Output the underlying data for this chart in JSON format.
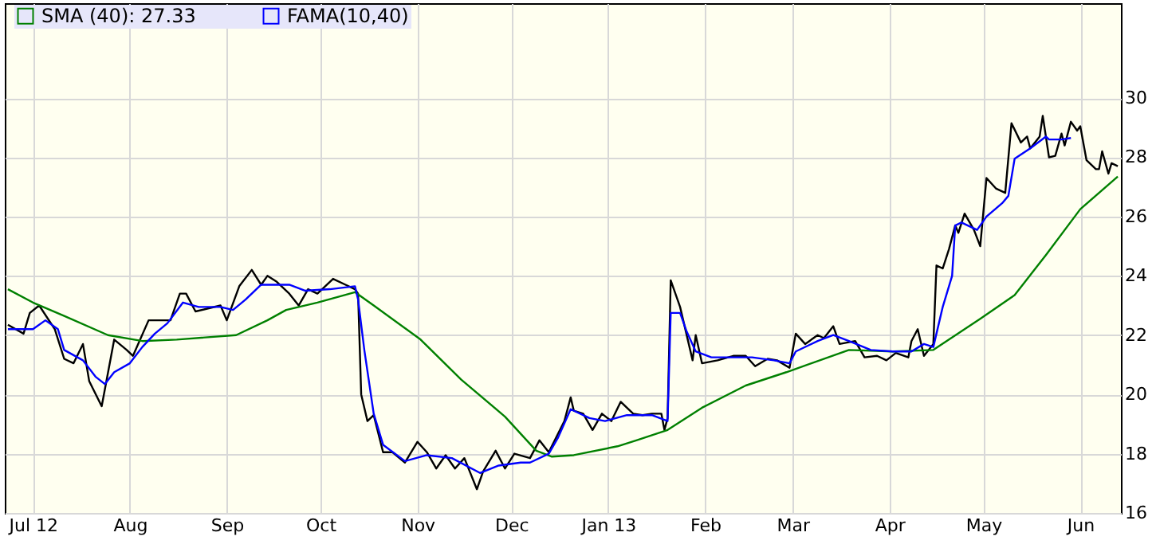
{
  "chart_data": {
    "type": "line",
    "legend": "top left",
    "grid": true,
    "line_style": "solid",
    "marker": "none",
    "xlim": [
      "2012-06-22",
      "2013-06-14"
    ],
    "ylim": [
      16,
      33.2
    ],
    "yticks": [
      16,
      18,
      20,
      22,
      24,
      26,
      28,
      30
    ],
    "xticks": [
      {
        "value": "2012-07-01",
        "label": "Jul 12"
      },
      {
        "value": "2012-08-01",
        "label": "Aug"
      },
      {
        "value": "2012-09-01",
        "label": "Sep"
      },
      {
        "value": "2012-10-01",
        "label": "Oct"
      },
      {
        "value": "2012-11-01",
        "label": "Nov"
      },
      {
        "value": "2012-12-01",
        "label": "Dec"
      },
      {
        "value": "2013-01-01",
        "label": "Jan 13"
      },
      {
        "value": "2013-02-01",
        "label": "Feb"
      },
      {
        "value": "2013-03-01",
        "label": "Mar"
      },
      {
        "value": "2013-04-01",
        "label": "Apr"
      },
      {
        "value": "2013-05-01",
        "label": "May"
      },
      {
        "value": "2013-06-01",
        "label": "Jun"
      }
    ],
    "series": [
      {
        "color": "#000000",
        "x": [
          "2012-06-23",
          "2012-06-28",
          "2012-06-30",
          "2012-07-03",
          "2012-07-08",
          "2012-07-11",
          "2012-07-14",
          "2012-07-17",
          "2012-07-19",
          "2012-07-23",
          "2012-07-27",
          "2012-07-31",
          "2012-08-02",
          "2012-08-07",
          "2012-08-11",
          "2012-08-14",
          "2012-08-17",
          "2012-08-19",
          "2012-08-22",
          "2012-08-26",
          "2012-08-30",
          "2012-09-01",
          "2012-09-05",
          "2012-09-09",
          "2012-09-12",
          "2012-09-14",
          "2012-09-17",
          "2012-09-21",
          "2012-09-24",
          "2012-09-27",
          "2012-09-30",
          "2012-10-05",
          "2012-10-09",
          "2012-10-12",
          "2012-10-13",
          "2012-10-14",
          "2012-10-16",
          "2012-10-18",
          "2012-10-21",
          "2012-10-24",
          "2012-10-28",
          "2012-11-01",
          "2012-11-04",
          "2012-11-07",
          "2012-11-10",
          "2012-11-13",
          "2012-11-16",
          "2012-11-20",
          "2012-11-22",
          "2012-11-26",
          "2012-11-29",
          "2012-12-02",
          "2012-12-07",
          "2012-12-10",
          "2012-12-13",
          "2012-12-18",
          "2012-12-20",
          "2012-12-21",
          "2012-12-24",
          "2012-12-27",
          "2012-12-30",
          "2013-01-02",
          "2013-01-05",
          "2013-01-09",
          "2013-01-12",
          "2013-01-15",
          "2013-01-18",
          "2013-01-19",
          "2013-01-20",
          "2013-01-21",
          "2013-01-24",
          "2013-01-26",
          "2013-01-28",
          "2013-01-29",
          "2013-01-31",
          "2013-02-05",
          "2013-02-10",
          "2013-02-14",
          "2013-02-17",
          "2013-02-21",
          "2013-02-24",
          "2013-02-28",
          "2013-03-02",
          "2013-03-05",
          "2013-03-09",
          "2013-03-11",
          "2013-03-14",
          "2013-03-16",
          "2013-03-21",
          "2013-03-24",
          "2013-03-28",
          "2013-03-31",
          "2013-04-03",
          "2013-04-07",
          "2013-04-08",
          "2013-04-10",
          "2013-04-12",
          "2013-04-15",
          "2013-04-16",
          "2013-04-18",
          "2013-04-20",
          "2013-04-22",
          "2013-04-23",
          "2013-04-25",
          "2013-04-28",
          "2013-04-30",
          "2013-05-02",
          "2013-05-05",
          "2013-05-08",
          "2013-05-10",
          "2013-05-13",
          "2013-05-15",
          "2013-05-16",
          "2013-05-19",
          "2013-05-20",
          "2013-05-22",
          "2013-05-24",
          "2013-05-26",
          "2013-05-27",
          "2013-05-29",
          "2013-05-31",
          "2013-06-01",
          "2013-06-03",
          "2013-06-06",
          "2013-06-07",
          "2013-06-08",
          "2013-06-10",
          "2013-06-11",
          "2013-06-13"
        ],
        "values": [
          22.35,
          22.05,
          22.75,
          23.0,
          22.2,
          21.2,
          21.05,
          21.7,
          20.45,
          19.6,
          21.85,
          21.5,
          21.3,
          22.5,
          22.5,
          22.5,
          23.4,
          23.4,
          22.8,
          22.9,
          23.0,
          22.5,
          23.65,
          24.2,
          23.7,
          24.0,
          23.8,
          23.4,
          23.0,
          23.55,
          23.4,
          23.9,
          23.7,
          23.55,
          23.4,
          20.0,
          19.1,
          19.3,
          18.05,
          18.05,
          17.7,
          18.4,
          18.05,
          17.5,
          17.95,
          17.5,
          17.85,
          16.8,
          17.4,
          18.1,
          17.5,
          18.0,
          17.85,
          18.45,
          18.05,
          19.1,
          19.9,
          19.45,
          19.35,
          18.8,
          19.35,
          19.1,
          19.75,
          19.35,
          19.3,
          19.35,
          19.35,
          18.8,
          19.2,
          23.85,
          22.95,
          22.05,
          21.15,
          22.0,
          21.05,
          21.15,
          21.3,
          21.3,
          20.95,
          21.2,
          21.15,
          20.9,
          22.05,
          21.7,
          22.0,
          21.9,
          22.3,
          21.7,
          21.8,
          21.25,
          21.3,
          21.15,
          21.4,
          21.25,
          21.8,
          22.2,
          21.3,
          21.7,
          24.35,
          24.25,
          24.9,
          25.7,
          25.45,
          26.1,
          25.55,
          25.0,
          27.3,
          26.95,
          26.8,
          29.15,
          28.5,
          28.7,
          28.3,
          28.7,
          29.4,
          28.0,
          28.05,
          28.8,
          28.4,
          29.2,
          28.9,
          29.05,
          27.9,
          27.6,
          27.6,
          28.2,
          27.45,
          27.8,
          27.7
        ]
      },
      {
        "name": "SMA (40): 27.33",
        "color": "#008000",
        "x": [
          "2012-06-23",
          "2012-07-01",
          "2012-07-11",
          "2012-07-25",
          "2012-08-05",
          "2012-08-16",
          "2012-09-04",
          "2012-09-14",
          "2012-09-20",
          "2012-09-30",
          "2012-10-12",
          "2012-10-18",
          "2012-11-02",
          "2012-11-15",
          "2012-11-29",
          "2012-12-09",
          "2012-12-14",
          "2012-12-21",
          "2013-01-04",
          "2013-01-10",
          "2013-01-20",
          "2013-01-31",
          "2013-02-14",
          "2013-02-27",
          "2013-03-19",
          "2013-04-02",
          "2013-04-15",
          "2013-04-30",
          "2013-05-11",
          "2013-05-21",
          "2013-06-01",
          "2013-06-13"
        ],
        "values": [
          23.55,
          23.1,
          22.65,
          22.0,
          21.8,
          21.85,
          22.0,
          22.5,
          22.85,
          23.1,
          23.45,
          23.0,
          21.85,
          20.5,
          19.25,
          18.1,
          17.9,
          17.95,
          18.25,
          18.45,
          18.8,
          19.55,
          20.3,
          20.75,
          21.5,
          21.45,
          21.5,
          22.55,
          23.35,
          24.7,
          26.25,
          27.35
        ]
      },
      {
        "name": "FAMA(10,40)",
        "color": "#0000ff",
        "x": [
          "2012-06-23",
          "2012-07-01",
          "2012-07-05",
          "2012-07-09",
          "2012-07-11",
          "2012-07-17",
          "2012-07-21",
          "2012-07-24",
          "2012-07-27",
          "2012-08-01",
          "2012-08-05",
          "2012-08-09",
          "2012-08-13",
          "2012-08-18",
          "2012-08-23",
          "2012-08-30",
          "2012-09-03",
          "2012-09-07",
          "2012-09-12",
          "2012-09-17",
          "2012-09-21",
          "2012-09-26",
          "2012-10-04",
          "2012-10-12",
          "2012-10-13",
          "2012-10-15",
          "2012-10-18",
          "2012-10-21",
          "2012-10-28",
          "2012-11-04",
          "2012-11-12",
          "2012-11-21",
          "2012-11-27",
          "2012-12-04",
          "2012-12-07",
          "2012-12-13",
          "2012-12-16",
          "2012-12-20",
          "2012-12-26",
          "2012-12-31",
          "2013-01-07",
          "2013-01-15",
          "2013-01-20",
          "2013-01-21",
          "2013-01-24",
          "2013-01-26",
          "2013-01-29",
          "2013-02-03",
          "2013-02-10",
          "2013-02-16",
          "2013-02-23",
          "2013-02-28",
          "2013-03-02",
          "2013-03-09",
          "2013-03-14",
          "2013-03-19",
          "2013-03-26",
          "2013-04-02",
          "2013-04-08",
          "2013-04-12",
          "2013-04-15",
          "2013-04-18",
          "2013-04-21",
          "2013-04-22",
          "2013-04-24",
          "2013-04-29",
          "2013-05-02",
          "2013-05-07",
          "2013-05-09",
          "2013-05-11",
          "2013-05-16",
          "2013-05-21",
          "2013-05-22",
          "2013-05-26",
          "2013-05-29"
        ],
        "values": [
          22.2,
          22.2,
          22.5,
          22.2,
          21.5,
          21.15,
          20.6,
          20.35,
          20.75,
          21.05,
          21.6,
          22.05,
          22.4,
          23.1,
          22.95,
          22.95,
          22.85,
          23.2,
          23.7,
          23.7,
          23.7,
          23.5,
          23.55,
          23.65,
          23.2,
          21.5,
          19.35,
          18.3,
          17.75,
          17.95,
          17.85,
          17.35,
          17.6,
          17.7,
          17.7,
          18.0,
          18.55,
          19.5,
          19.2,
          19.1,
          19.3,
          19.3,
          19.1,
          22.75,
          22.75,
          22.15,
          21.45,
          21.25,
          21.25,
          21.25,
          21.15,
          21.05,
          21.45,
          21.8,
          22.0,
          21.8,
          21.5,
          21.45,
          21.45,
          21.7,
          21.6,
          22.95,
          24.0,
          25.7,
          25.8,
          25.55,
          26.0,
          26.45,
          26.7,
          27.95,
          28.3,
          28.7,
          28.6,
          28.6,
          28.65
        ]
      }
    ]
  }
}
